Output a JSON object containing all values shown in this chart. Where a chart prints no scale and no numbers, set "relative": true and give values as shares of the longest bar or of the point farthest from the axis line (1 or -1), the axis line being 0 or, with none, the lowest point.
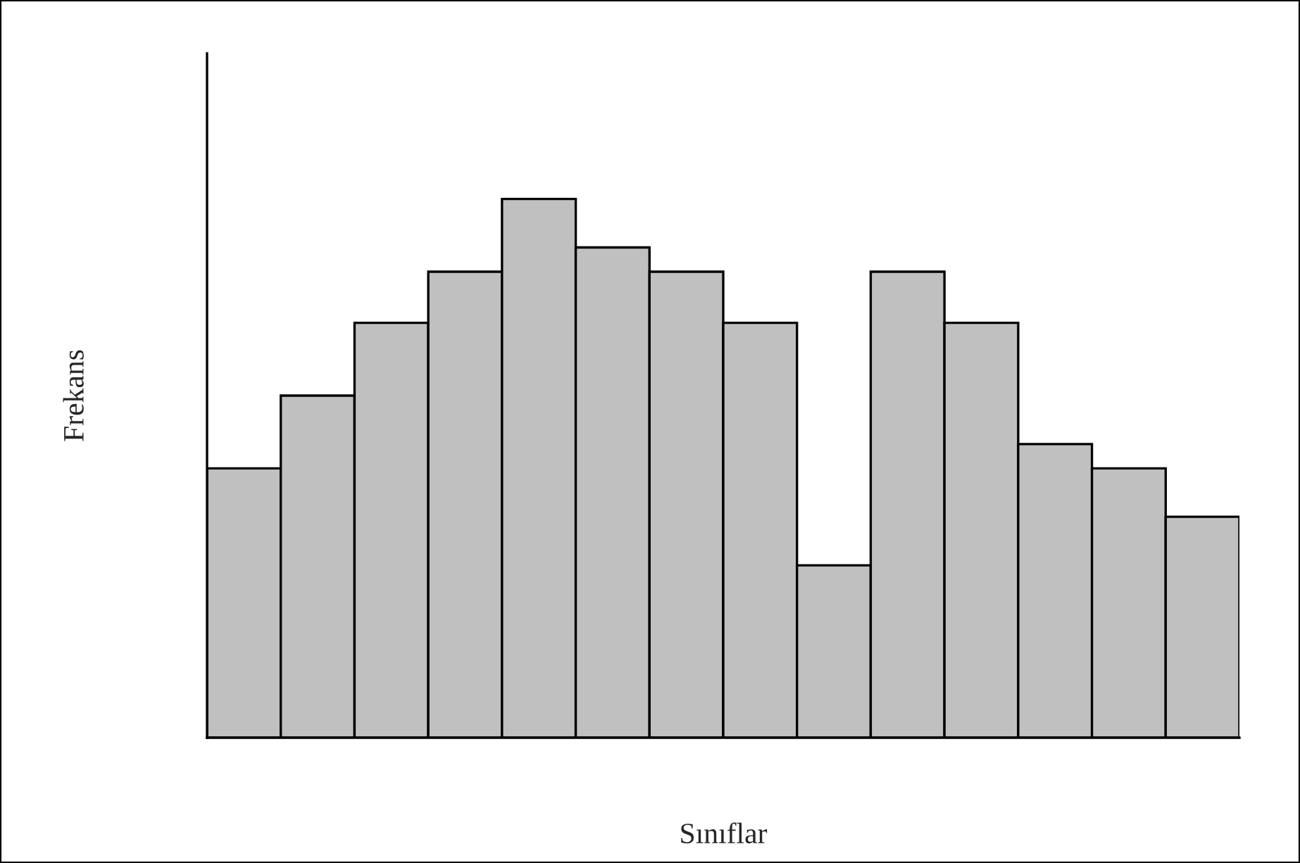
{
  "chart_data": {
    "type": "bar",
    "relative": true,
    "xlabel": "Sınıflar",
    "ylabel": "Frekans",
    "categories": [
      null,
      null,
      null,
      null,
      null,
      null,
      null,
      null,
      null,
      null,
      null,
      null,
      null,
      null
    ],
    "values": [
      0.5,
      0.635,
      0.77,
      0.865,
      1,
      0.91,
      0.865,
      0.77,
      0.32,
      0.865,
      0.77,
      0.545,
      0.5,
      0.41
    ],
    "color": "#c0c0c0"
  }
}
